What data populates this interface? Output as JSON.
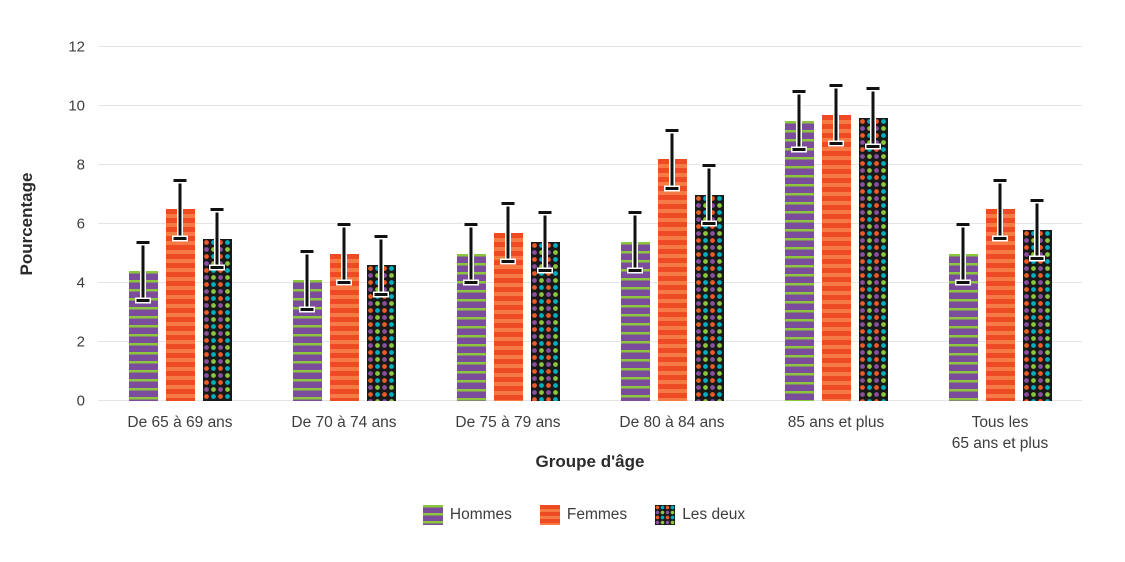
{
  "chart_data": {
    "type": "bar",
    "title": "",
    "xlabel": "Groupe d'âge",
    "ylabel": "Pourcentage",
    "ylim": [
      0,
      12
    ],
    "ytick_step": 2,
    "grid": true,
    "legend_position": "bottom",
    "categories": [
      "De 65 à 69 ans",
      "De 70 à 74 ans",
      "De 75 à 79 ans",
      "De 80 à 84 ans",
      "85 ans et plus",
      "Tous les\n65 ans et plus"
    ],
    "series": [
      {
        "name": "Hommes",
        "pattern": "purple-with-green-horizontal-stripes",
        "values": [
          4.4,
          4.1,
          5.0,
          5.4,
          9.5,
          5.0
        ],
        "errors": [
          1.0,
          1.0,
          1.0,
          1.0,
          1.0,
          1.0
        ]
      },
      {
        "name": "Femmes",
        "pattern": "orange-horizontal-stripes",
        "values": [
          6.5,
          5.0,
          5.7,
          8.2,
          9.7,
          6.5
        ],
        "errors": [
          1.0,
          1.0,
          1.0,
          1.0,
          1.0,
          1.0
        ]
      },
      {
        "name": "Les deux",
        "pattern": "black-with-multicolor-dots",
        "values": [
          5.5,
          4.6,
          5.4,
          7.0,
          9.6,
          5.8
        ],
        "errors": [
          1.0,
          1.0,
          1.0,
          1.0,
          1.0,
          1.0
        ]
      }
    ],
    "colors": {
      "hommes_purple": "#7b4c9c",
      "hommes_stripe_green": "#8cc63f",
      "femmes_orange_dark": "#ee4b22",
      "femmes_orange_light": "#f57a43",
      "lesdeux_background": "#191919",
      "dot_orange": "#f05a28",
      "dot_teal": "#00aebd",
      "dot_purple": "#8a4f9e",
      "dot_green": "#8cc63f",
      "gridline": "#e4e4e4",
      "error_bar": "#111111",
      "text": "#3d3d3d"
    }
  }
}
